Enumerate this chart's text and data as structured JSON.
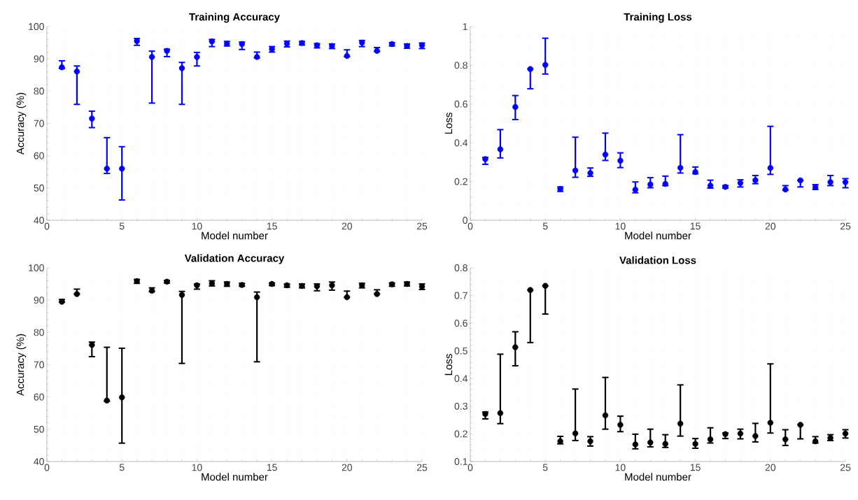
{
  "chart_data": [
    {
      "type": "scatter",
      "title": "Training Accuracy",
      "xlabel": "Model number",
      "ylabel": "Accuracy (%)",
      "color": "#0000ff",
      "marker": "circle",
      "grid": true,
      "xlim": [
        0,
        25
      ],
      "xticks": [
        0,
        5,
        10,
        15,
        20,
        25
      ],
      "ylim": [
        40,
        100
      ],
      "yticks": [
        40,
        50,
        60,
        70,
        80,
        90,
        100
      ],
      "x": [
        1,
        2,
        3,
        4,
        5,
        6,
        7,
        8,
        9,
        10,
        11,
        12,
        13,
        14,
        15,
        16,
        17,
        18,
        19,
        20,
        21,
        22,
        23,
        24,
        25
      ],
      "values": [
        87.4,
        86.1,
        71.5,
        56.0,
        56.0,
        95.5,
        90.6,
        92.5,
        87.1,
        90.6,
        95.4,
        94.7,
        94.6,
        90.6,
        93.0,
        94.7,
        94.9,
        94.2,
        94.0,
        90.9,
        95.0,
        92.5,
        94.6,
        94.0,
        94.2
      ],
      "errors": [
        [
          87.0,
          89.4
        ],
        [
          75.9,
          87.8
        ],
        [
          68.7,
          73.8
        ],
        [
          54.5,
          65.6
        ],
        [
          46.3,
          62.8
        ],
        [
          94.2,
          96.3
        ],
        [
          76.3,
          92.4
        ],
        [
          90.7,
          93.0
        ],
        [
          75.9,
          88.9
        ],
        [
          87.8,
          92.0
        ],
        [
          93.8,
          96.0
        ],
        [
          94.0,
          95.4
        ],
        [
          92.9,
          95.2
        ],
        [
          90.3,
          92.1
        ],
        [
          92.1,
          93.8
        ],
        [
          93.7,
          95.5
        ],
        [
          94.3,
          95.4
        ],
        [
          93.4,
          94.7
        ],
        [
          93.2,
          94.6
        ],
        [
          90.7,
          92.8
        ],
        [
          93.8,
          95.7
        ],
        [
          92.3,
          93.5
        ],
        [
          94.0,
          95.0
        ],
        [
          93.3,
          94.6
        ],
        [
          93.2,
          94.9
        ]
      ]
    },
    {
      "type": "scatter",
      "title": "Training Loss",
      "xlabel": "Model number",
      "ylabel": "Loss",
      "color": "#0000ff",
      "marker": "circle",
      "grid": true,
      "xlim": [
        0,
        25
      ],
      "xticks": [
        0,
        5,
        10,
        15,
        20,
        25
      ],
      "ylim": [
        0,
        1
      ],
      "yticks": [
        0,
        0.2,
        0.4,
        0.6,
        0.8,
        1
      ],
      "x": [
        1,
        2,
        3,
        4,
        5,
        6,
        7,
        8,
        9,
        10,
        11,
        12,
        13,
        14,
        15,
        16,
        17,
        18,
        19,
        20,
        21,
        22,
        23,
        24,
        25
      ],
      "values": [
        0.316,
        0.366,
        0.585,
        0.781,
        0.802,
        0.162,
        0.257,
        0.244,
        0.339,
        0.308,
        0.158,
        0.185,
        0.188,
        0.271,
        0.249,
        0.179,
        0.172,
        0.192,
        0.207,
        0.27,
        0.159,
        0.206,
        0.171,
        0.197,
        0.197
      ],
      "errors": [
        [
          0.289,
          0.325
        ],
        [
          0.322,
          0.468
        ],
        [
          0.52,
          0.644
        ],
        [
          0.679,
          0.781
        ],
        [
          0.755,
          0.94
        ],
        [
          0.149,
          0.172
        ],
        [
          0.222,
          0.429
        ],
        [
          0.227,
          0.27
        ],
        [
          0.309,
          0.45
        ],
        [
          0.272,
          0.348
        ],
        [
          0.142,
          0.198
        ],
        [
          0.168,
          0.22
        ],
        [
          0.179,
          0.228
        ],
        [
          0.244,
          0.442
        ],
        [
          0.24,
          0.275
        ],
        [
          0.166,
          0.207
        ],
        [
          0.166,
          0.179
        ],
        [
          0.172,
          0.209
        ],
        [
          0.189,
          0.231
        ],
        [
          0.237,
          0.485
        ],
        [
          0.155,
          0.179
        ],
        [
          0.172,
          0.206
        ],
        [
          0.159,
          0.184
        ],
        [
          0.179,
          0.231
        ],
        [
          0.168,
          0.215
        ]
      ]
    },
    {
      "type": "scatter",
      "title": "Validation Accuracy",
      "xlabel": "Model number",
      "ylabel": "Accuracy (%)",
      "color": "#000000",
      "marker": "circle",
      "grid": true,
      "xlim": [
        0,
        25
      ],
      "xticks": [
        0,
        5,
        10,
        15,
        20,
        25
      ],
      "ylim": [
        40,
        100
      ],
      "yticks": [
        40,
        50,
        60,
        70,
        80,
        90,
        100
      ],
      "x": [
        1,
        2,
        3,
        4,
        5,
        6,
        7,
        8,
        9,
        10,
        11,
        12,
        13,
        14,
        15,
        16,
        17,
        18,
        19,
        20,
        21,
        22,
        23,
        24,
        25
      ],
      "values": [
        89.5,
        91.9,
        76.1,
        58.9,
        59.9,
        95.9,
        92.9,
        95.7,
        91.6,
        94.6,
        95.2,
        95.0,
        94.7,
        90.9,
        95.0,
        94.6,
        94.4,
        94.3,
        94.6,
        90.9,
        94.6,
        91.9,
        94.9,
        95.0,
        94.2
      ],
      "errors": [
        [
          89.4,
          90.2
        ],
        [
          91.9,
          93.4
        ],
        [
          72.5,
          77.0
        ],
        [
          58.7,
          75.4
        ],
        [
          45.7,
          75.1
        ],
        [
          95.2,
          96.4
        ],
        [
          92.6,
          93.8
        ],
        [
          95.3,
          96.1
        ],
        [
          70.4,
          92.7
        ],
        [
          93.4,
          95.0
        ],
        [
          94.4,
          96.0
        ],
        [
          94.3,
          95.6
        ],
        [
          94.3,
          95.2
        ],
        [
          70.9,
          92.5
        ],
        [
          94.5,
          95.3
        ],
        [
          94.0,
          95.0
        ],
        [
          93.8,
          95.0
        ],
        [
          92.9,
          95.0
        ],
        [
          93.1,
          95.6
        ],
        [
          90.9,
          92.8
        ],
        [
          93.8,
          95.2
        ],
        [
          91.9,
          93.2
        ],
        [
          94.3,
          95.3
        ],
        [
          94.4,
          95.6
        ],
        [
          93.3,
          95.0
        ]
      ]
    },
    {
      "type": "scatter",
      "title": "Validation Loss",
      "xlabel": "Model number",
      "ylabel": "Loss",
      "color": "#000000",
      "marker": "circle",
      "grid": true,
      "xlim": [
        0,
        25
      ],
      "xticks": [
        0,
        5,
        10,
        15,
        20,
        25
      ],
      "ylim": [
        0.1,
        0.8
      ],
      "yticks": [
        0.1,
        0.2,
        0.3,
        0.4,
        0.5,
        0.6,
        0.7,
        0.8
      ],
      "x": [
        1,
        2,
        3,
        4,
        5,
        6,
        7,
        8,
        9,
        10,
        11,
        12,
        13,
        14,
        15,
        16,
        17,
        18,
        19,
        20,
        21,
        22,
        23,
        24,
        25
      ],
      "values": [
        0.272,
        0.275,
        0.513,
        0.72,
        0.735,
        0.173,
        0.202,
        0.173,
        0.267,
        0.233,
        0.162,
        0.169,
        0.164,
        0.237,
        0.164,
        0.18,
        0.199,
        0.201,
        0.192,
        0.24,
        0.18,
        0.233,
        0.173,
        0.185,
        0.201
      ],
      "errors": [
        [
          0.254,
          0.279
        ],
        [
          0.237,
          0.488
        ],
        [
          0.446,
          0.569
        ],
        [
          0.53,
          0.72
        ],
        [
          0.633,
          0.735
        ],
        [
          0.164,
          0.191
        ],
        [
          0.176,
          0.362
        ],
        [
          0.156,
          0.19
        ],
        [
          0.217,
          0.404
        ],
        [
          0.208,
          0.264
        ],
        [
          0.146,
          0.199
        ],
        [
          0.153,
          0.217
        ],
        [
          0.151,
          0.197
        ],
        [
          0.192,
          0.377
        ],
        [
          0.148,
          0.183
        ],
        [
          0.167,
          0.222
        ],
        [
          0.183,
          0.203
        ],
        [
          0.182,
          0.217
        ],
        [
          0.171,
          0.238
        ],
        [
          0.203,
          0.453
        ],
        [
          0.158,
          0.215
        ],
        [
          0.182,
          0.233
        ],
        [
          0.167,
          0.19
        ],
        [
          0.176,
          0.197
        ],
        [
          0.185,
          0.215
        ]
      ]
    }
  ]
}
